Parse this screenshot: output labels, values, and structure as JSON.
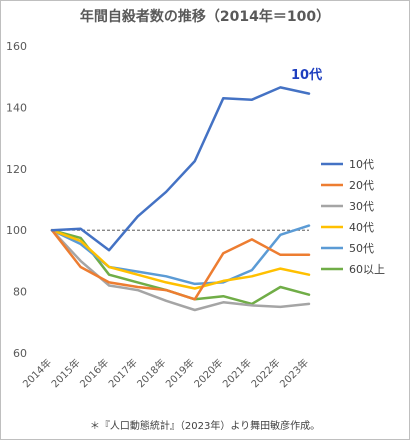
{
  "chart_data": {
    "type": "line",
    "title": "年間自殺者数の推移（2014年＝100）",
    "x": [
      "2014年",
      "2015年",
      "2016年",
      "2017年",
      "2018年",
      "2019年",
      "2020年",
      "2021年",
      "2022年",
      "2023年"
    ],
    "ylim": [
      60,
      160
    ],
    "yticks": [
      60,
      80,
      100,
      120,
      140,
      160
    ],
    "reference_line": 100,
    "grid": false,
    "legend_position": "right",
    "series": [
      {
        "name": "10代",
        "color": "#4472c4",
        "values": [
          100,
          100.5,
          93.5,
          104.5,
          112.5,
          122.5,
          143,
          142.5,
          146.5,
          144.5
        ]
      },
      {
        "name": "20代",
        "color": "#ed7d31",
        "values": [
          100,
          88,
          83,
          81.5,
          80.5,
          77.5,
          92.5,
          97,
          92,
          92
        ]
      },
      {
        "name": "30代",
        "color": "#a5a5a5",
        "values": [
          100,
          90,
          82,
          80.5,
          77,
          74,
          76.5,
          75.5,
          75,
          76
        ]
      },
      {
        "name": "40代",
        "color": "#ffc000",
        "values": [
          100,
          96.5,
          88,
          85.5,
          83,
          81,
          83.5,
          85,
          87.5,
          85.5
        ]
      },
      {
        "name": "50代",
        "color": "#5b9bd5",
        "values": [
          100,
          95.5,
          88,
          86.5,
          85,
          82.5,
          83,
          87,
          98.5,
          101.5
        ]
      },
      {
        "name": "60以上",
        "color": "#70ad47",
        "values": [
          100,
          97.5,
          85.5,
          83,
          80.5,
          77.5,
          78.5,
          76,
          81.5,
          79
        ]
      }
    ],
    "annotation": "10代",
    "footnote": "＊『人口動態統計』（2023年）より舞田敏彦作成。"
  }
}
